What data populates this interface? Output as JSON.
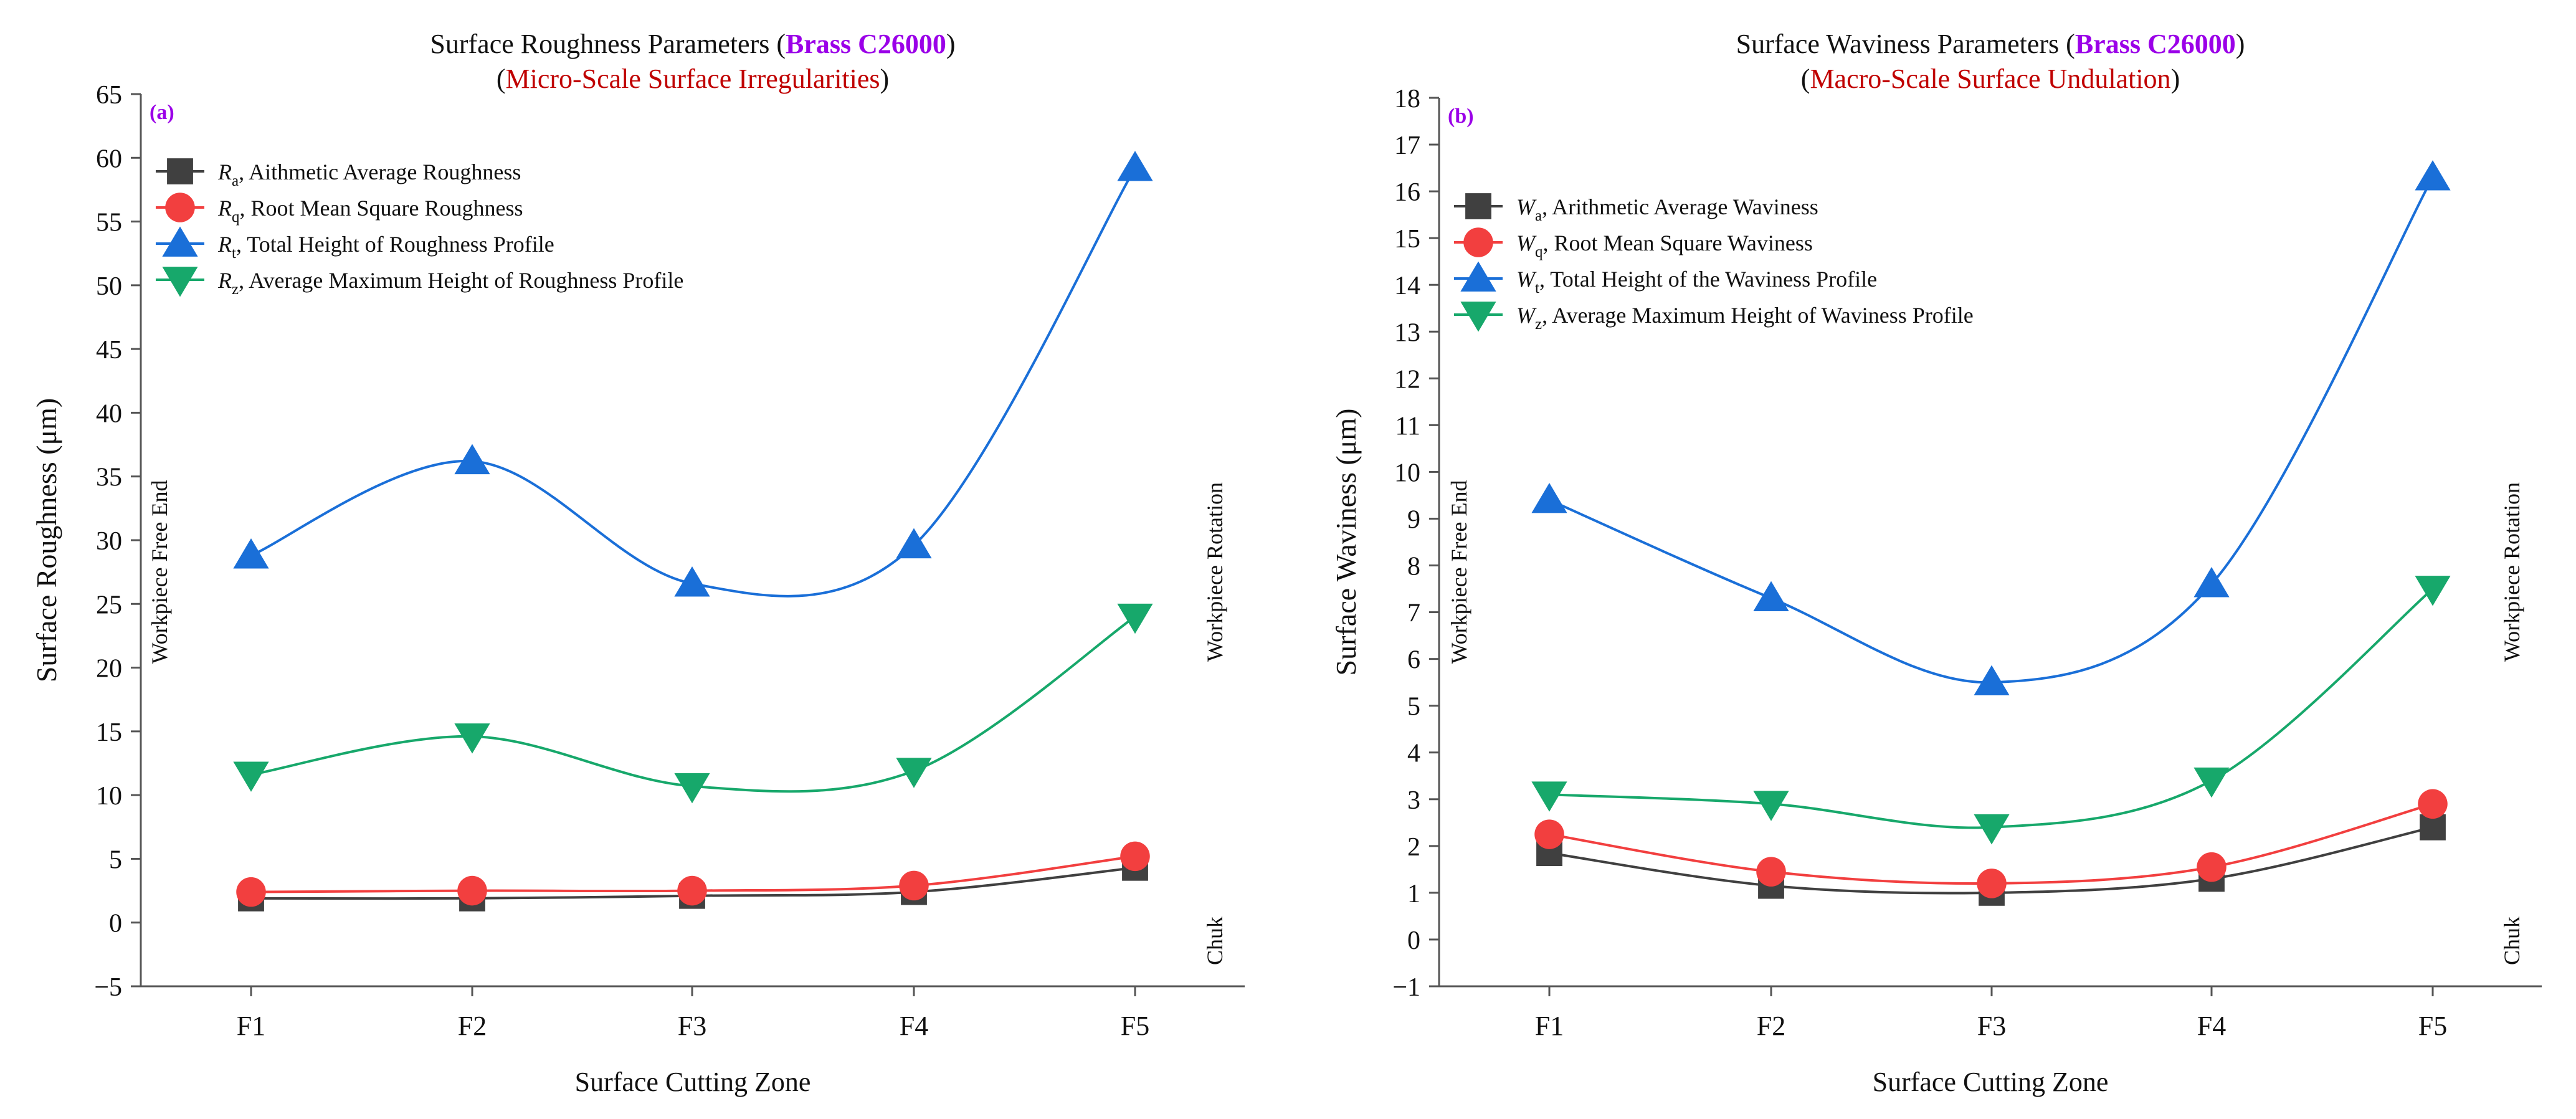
{
  "colors": {
    "axis": "#555555",
    "text": "#111111",
    "brand": "#9b00e8",
    "subtitle": "#c00000",
    "panel_label": "#9b00e8"
  },
  "chart_data": [
    {
      "type": "line",
      "panel_label": "(a)",
      "title": {
        "prefix": "Surface Roughness Parameters (",
        "brand": "Brass C26000",
        "suffix": ")"
      },
      "subtitle": {
        "prefix": "(",
        "text": "Micro-Scale Surface Irregularities",
        "suffix": ")"
      },
      "xlabel": "Surface Cutting Zone",
      "ylabel": "Surface Roughness (μm)",
      "categories": [
        "F1",
        "F2",
        "F3",
        "F4",
        "F5"
      ],
      "ylim": [
        -5,
        65
      ],
      "yticks": [
        -5,
        0,
        5,
        10,
        15,
        20,
        25,
        30,
        35,
        40,
        45,
        50,
        55,
        60,
        65
      ],
      "side_left": "Workpiece Free End",
      "side_right_top": "Workpiece Rotation",
      "side_right_bottom": "Chuk",
      "legend_position": "top-left",
      "series": [
        {
          "symbol": "R",
          "sub": "a",
          "name": ", Aithmetic Average Roughness",
          "color": "#404040",
          "marker": "square",
          "values": [
            1.9,
            1.9,
            2.1,
            2.4,
            4.3
          ]
        },
        {
          "symbol": "R",
          "sub": "q",
          "name": ", Root Mean Square Roughness",
          "color": "#f23f3f",
          "marker": "circle",
          "values": [
            2.4,
            2.5,
            2.5,
            2.9,
            5.2
          ]
        },
        {
          "symbol": "R",
          "sub": "t",
          "name": ", Total Height of Roughness Profile",
          "color": "#1a6fd8",
          "marker": "triangle-up",
          "values": [
            28.8,
            36.2,
            26.6,
            29.6,
            59.2
          ]
        },
        {
          "symbol": "R",
          "sub": "z",
          "name": ", Average Maximum Height of Roughness Profile",
          "color": "#17a86b",
          "marker": "triangle-down",
          "values": [
            11.6,
            14.6,
            10.7,
            11.9,
            24.0
          ]
        }
      ]
    },
    {
      "type": "line",
      "panel_label": "(b)",
      "title": {
        "prefix": "Surface Waviness Parameters (",
        "brand": "Brass C26000",
        "suffix": ")"
      },
      "subtitle": {
        "prefix": "(",
        "text": "Macro-Scale Surface Undulation",
        "suffix": ")"
      },
      "xlabel": "Surface Cutting Zone",
      "ylabel": "Surface Waviness (μm)",
      "categories": [
        "F1",
        "F2",
        "F3",
        "F4",
        "F5"
      ],
      "ylim": [
        -1,
        18
      ],
      "yticks": [
        -1,
        0,
        1,
        2,
        3,
        4,
        5,
        6,
        7,
        8,
        9,
        10,
        11,
        12,
        13,
        14,
        15,
        16,
        17,
        18
      ],
      "side_left": "Workpiece Free End",
      "side_right_top": "Workpiece Rotation",
      "side_right_bottom": "Chuk",
      "legend_position": "top-left",
      "series": [
        {
          "symbol": "W",
          "sub": "a",
          "name": ", Arithmetic Average Waviness",
          "color": "#404040",
          "marker": "square",
          "values": [
            1.85,
            1.15,
            1.0,
            1.3,
            2.4
          ]
        },
        {
          "symbol": "W",
          "sub": "q",
          "name": ", Root Mean Square Waviness",
          "color": "#f23f3f",
          "marker": "circle",
          "values": [
            2.25,
            1.45,
            1.2,
            1.55,
            2.9
          ]
        },
        {
          "symbol": "W",
          "sub": "t",
          "name": ", Total Height of the Waviness Profile",
          "color": "#1a6fd8",
          "marker": "triangle-up",
          "values": [
            9.4,
            7.3,
            5.5,
            7.6,
            16.3
          ]
        },
        {
          "symbol": "W",
          "sub": "z",
          "name": ", Average Maximum Height of Waviness Profile",
          "color": "#17a86b",
          "marker": "triangle-down",
          "values": [
            3.1,
            2.9,
            2.4,
            3.4,
            7.5
          ]
        }
      ]
    }
  ]
}
